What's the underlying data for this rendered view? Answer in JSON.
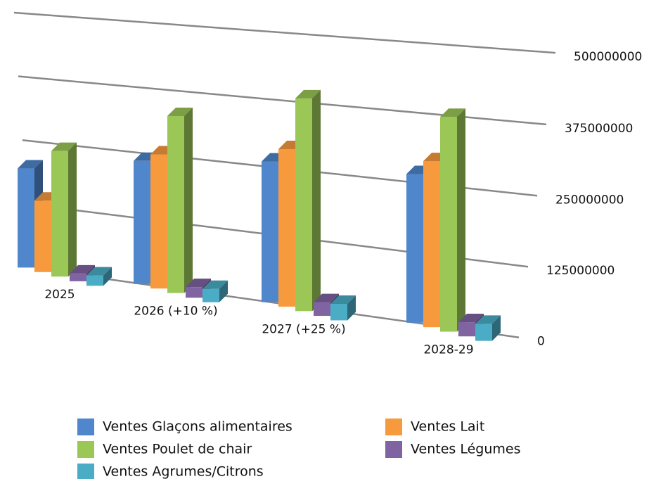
{
  "chart_data": {
    "type": "bar3d",
    "categories": [
      "2025",
      "2026 (+10 %)",
      "2027 (+25 %)",
      "2028-29"
    ],
    "series": [
      {
        "name": "Ventes Glaçons alimentaires",
        "color": "#4f86cc",
        "values": [
          195000000,
          235000000,
          260000000,
          265000000
        ]
      },
      {
        "name": "Ventes Lait",
        "color": "#f79a3e",
        "values": [
          140000000,
          255000000,
          290000000,
          295000000
        ]
      },
      {
        "name": "Ventes Poulet de chair",
        "color": "#9bc756",
        "values": [
          245000000,
          335000000,
          390000000,
          380000000
        ]
      },
      {
        "name": "Ventes Légumes",
        "color": "#8064a2",
        "values": [
          15000000,
          20000000,
          25000000,
          25000000
        ]
      },
      {
        "name": "Ventes Agrumes/Citrons",
        "color": "#4bacc6",
        "values": [
          20000000,
          25000000,
          30000000,
          30000000
        ]
      }
    ],
    "ylim": [
      0,
      500000000
    ],
    "yticks": [
      0,
      125000000,
      250000000,
      375000000,
      500000000
    ],
    "grid": true,
    "legend": "bottom"
  }
}
